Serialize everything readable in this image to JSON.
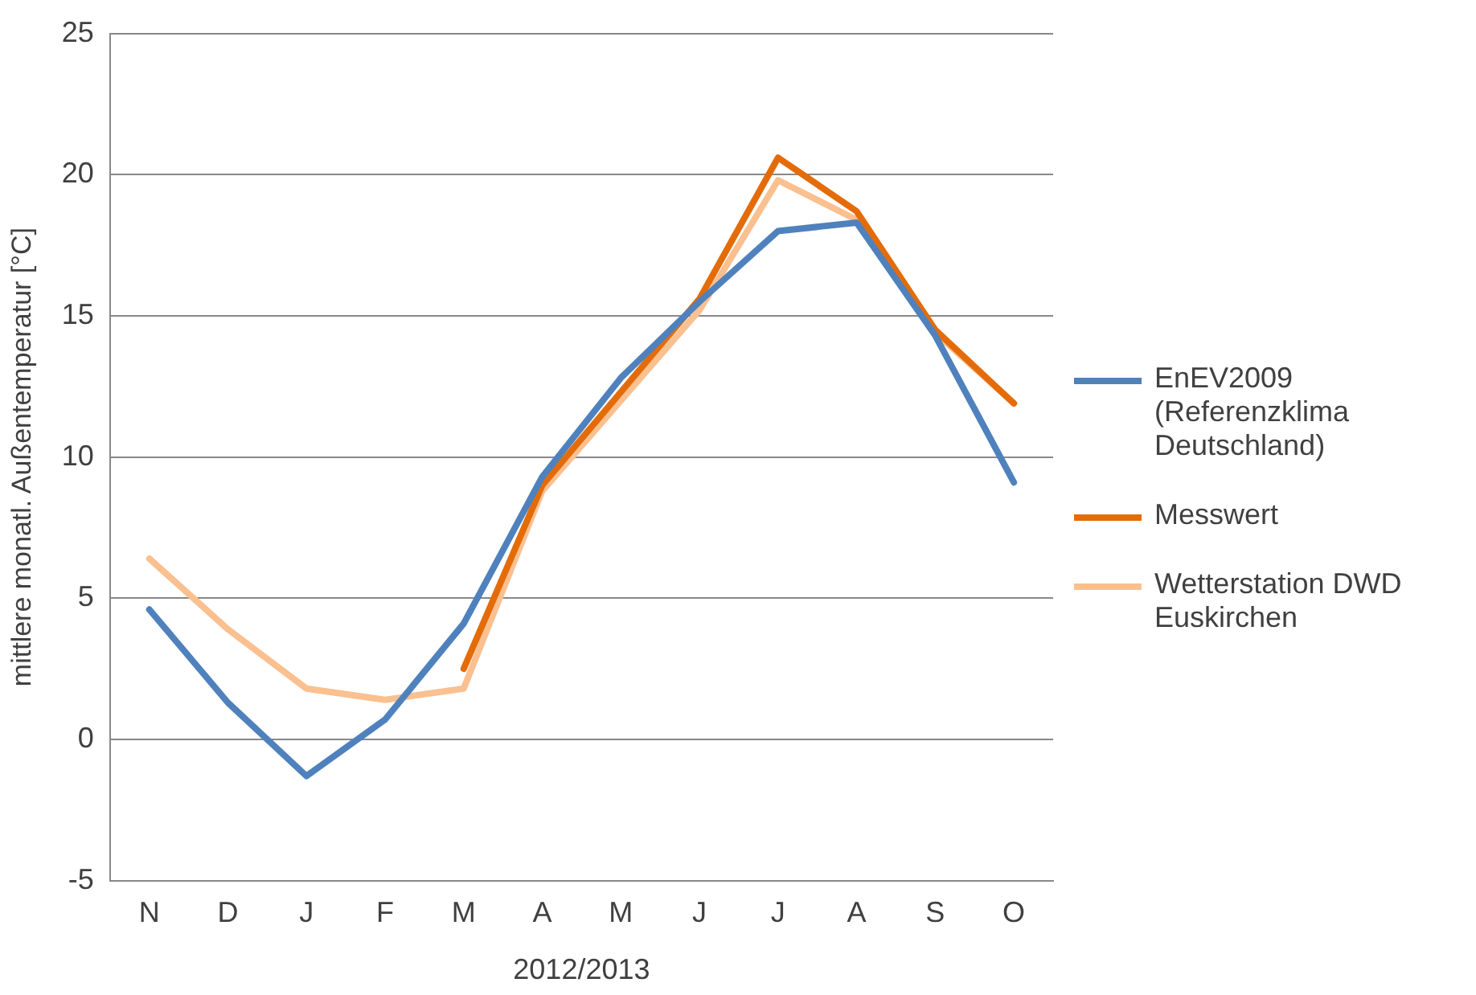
{
  "chart_data": {
    "type": "line",
    "xlabel": "2012/2013",
    "ylabel": "mittlere monatl. Außentemperatur [°C]",
    "categories": [
      "N",
      "D",
      "J",
      "F",
      "M",
      "A",
      "M",
      "J",
      "J",
      "A",
      "S",
      "O"
    ],
    "ylim": [
      -5,
      25
    ],
    "yticks": [
      -5,
      0,
      5,
      10,
      15,
      20,
      25
    ],
    "grid": "y",
    "legend": "right",
    "marker": "none",
    "line_style": "solid",
    "series": [
      {
        "name": "EnEV2009 (Referenzklima Deutschland)",
        "color": "#4f81bd",
        "values": [
          4.6,
          1.3,
          -1.3,
          0.7,
          4.1,
          9.3,
          12.8,
          15.5,
          18.0,
          18.3,
          14.3,
          9.1
        ]
      },
      {
        "name": "Messwert",
        "color": "#e36c09",
        "values": [
          null,
          null,
          null,
          null,
          2.5,
          9.0,
          12.3,
          15.6,
          20.6,
          18.7,
          14.5,
          11.9
        ]
      },
      {
        "name": "Wetterstation DWD Euskirchen",
        "color": "#fac090",
        "values": [
          6.4,
          3.9,
          1.8,
          1.4,
          1.8,
          8.8,
          12.0,
          15.2,
          19.8,
          18.4,
          14.4,
          11.9
        ]
      }
    ]
  }
}
